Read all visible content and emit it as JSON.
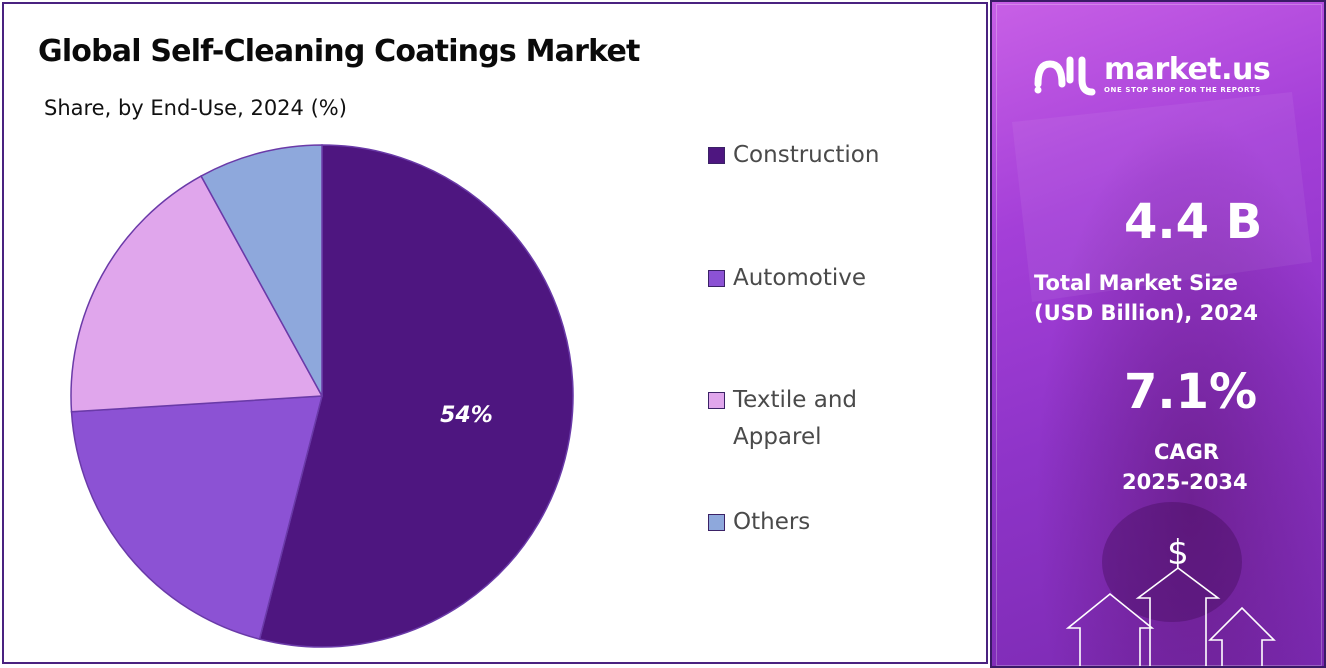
{
  "title": "Global Self-Cleaning Coatings Market",
  "subtitle": "Share, by End-Use, 2024 (%)",
  "chart_data": {
    "type": "pie",
    "title": "Global Self-Cleaning Coatings Market",
    "subtitle": "Share, by End-Use, 2024 (%)",
    "categories": [
      "Construction",
      "Automotive",
      "Textile and Apparel",
      "Others"
    ],
    "values": [
      54,
      20,
      18,
      8
    ],
    "colors": [
      "#4e1680",
      "#8c52d4",
      "#e0a6ec",
      "#8ea8dc"
    ],
    "data_labels": [
      "54%",
      "",
      "",
      ""
    ],
    "legend_position": "right"
  },
  "legend": [
    {
      "line1": "Construction",
      "line2": "",
      "color": "#4e1680"
    },
    {
      "line1": "Automotive",
      "line2": "",
      "color": "#8c52d4"
    },
    {
      "line1": "Textile and",
      "line2": "Apparel",
      "color": "#e0a6ec"
    },
    {
      "line1": "Others",
      "line2": "",
      "color": "#8ea8dc"
    }
  ],
  "brand": {
    "name": "market.us",
    "tagline": "ONE STOP SHOP FOR THE REPORTS"
  },
  "stats": {
    "market_size_value": "4.4 B",
    "market_size_label_1": "Total Market Size",
    "market_size_label_2": "(USD Billion), 2024",
    "cagr_value": "7.1%",
    "cagr_label_1": "CAGR",
    "cagr_label_2": "2025-2034"
  },
  "decor_symbol": "$"
}
